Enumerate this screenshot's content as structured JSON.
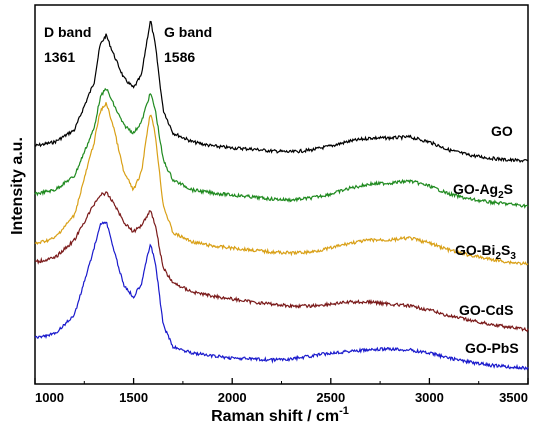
{
  "chart_data": {
    "type": "line",
    "xlabel": "Raman shift / cm",
    "xlabel_sup": "-1",
    "ylabel": "Intensity a.u.",
    "xlim": [
      1000,
      3500
    ],
    "x_ticks": [
      "1000",
      "1500",
      "2000",
      "2500",
      "3000",
      "3500"
    ],
    "annotations": [
      {
        "name": "d-band",
        "title": "D band",
        "value": "1361"
      },
      {
        "name": "g-band",
        "title": "G band",
        "value": "1586"
      }
    ],
    "series": [
      {
        "name": "GO",
        "base": "GO",
        "sub": "",
        "sub2": "",
        "color": "#000000",
        "points": [
          [
            1000,
            146
          ],
          [
            1100,
            142
          ],
          [
            1200,
            130
          ],
          [
            1300,
            82
          ],
          [
            1330,
            45
          ],
          [
            1361,
            35
          ],
          [
            1400,
            55
          ],
          [
            1450,
            78
          ],
          [
            1500,
            88
          ],
          [
            1540,
            75
          ],
          [
            1570,
            38
          ],
          [
            1586,
            20
          ],
          [
            1610,
            45
          ],
          [
            1650,
            110
          ],
          [
            1700,
            133
          ],
          [
            1800,
            142
          ],
          [
            1900,
            146
          ],
          [
            2000,
            148
          ],
          [
            2100,
            149
          ],
          [
            2200,
            151
          ],
          [
            2300,
            152
          ],
          [
            2400,
            150
          ],
          [
            2500,
            146
          ],
          [
            2600,
            141
          ],
          [
            2700,
            138
          ],
          [
            2800,
            138
          ],
          [
            2900,
            137
          ],
          [
            3000,
            142
          ],
          [
            3100,
            150
          ],
          [
            3200,
            155
          ],
          [
            3300,
            158
          ],
          [
            3400,
            160
          ],
          [
            3500,
            161
          ]
        ]
      },
      {
        "name": "GO-Ag2S",
        "base": "GO-Ag",
        "sub": "2",
        "sub2": "S",
        "color": "#1f8a1f",
        "points": [
          [
            1000,
            194
          ],
          [
            1100,
            190
          ],
          [
            1200,
            176
          ],
          [
            1300,
            128
          ],
          [
            1330,
            98
          ],
          [
            1361,
            88
          ],
          [
            1400,
            105
          ],
          [
            1450,
            125
          ],
          [
            1500,
            133
          ],
          [
            1540,
            122
          ],
          [
            1570,
            102
          ],
          [
            1586,
            93
          ],
          [
            1610,
            110
          ],
          [
            1650,
            160
          ],
          [
            1700,
            180
          ],
          [
            1800,
            190
          ],
          [
            1900,
            193
          ],
          [
            2000,
            195
          ],
          [
            2100,
            197
          ],
          [
            2200,
            199
          ],
          [
            2300,
            200
          ],
          [
            2400,
            198
          ],
          [
            2500,
            194
          ],
          [
            2600,
            188
          ],
          [
            2700,
            184
          ],
          [
            2800,
            183
          ],
          [
            2900,
            181
          ],
          [
            3000,
            186
          ],
          [
            3100,
            194
          ],
          [
            3200,
            199
          ],
          [
            3300,
            202
          ],
          [
            3400,
            204
          ],
          [
            3500,
            206
          ]
        ]
      },
      {
        "name": "GO-Bi2S3",
        "base": "GO-Bi",
        "sub": "2",
        "sub2": "S",
        "sub3": "3",
        "color": "#d9a017",
        "points": [
          [
            1000,
            244
          ],
          [
            1100,
            238
          ],
          [
            1200,
            215
          ],
          [
            1300,
            142
          ],
          [
            1330,
            112
          ],
          [
            1361,
            103
          ],
          [
            1400,
            128
          ],
          [
            1450,
            172
          ],
          [
            1500,
            190
          ],
          [
            1540,
            172
          ],
          [
            1570,
            130
          ],
          [
            1586,
            112
          ],
          [
            1610,
            135
          ],
          [
            1650,
            205
          ],
          [
            1700,
            233
          ],
          [
            1800,
            242
          ],
          [
            1900,
            246
          ],
          [
            2000,
            248
          ],
          [
            2100,
            250
          ],
          [
            2200,
            252
          ],
          [
            2300,
            253
          ],
          [
            2400,
            252
          ],
          [
            2500,
            248
          ],
          [
            2600,
            243
          ],
          [
            2700,
            240
          ],
          [
            2800,
            240
          ],
          [
            2900,
            238
          ],
          [
            3000,
            243
          ],
          [
            3100,
            250
          ],
          [
            3200,
            255
          ],
          [
            3300,
            259
          ],
          [
            3400,
            262
          ],
          [
            3500,
            264
          ]
        ]
      },
      {
        "name": "GO-CdS",
        "base": "GO-CdS",
        "sub": "",
        "sub2": "",
        "color": "#7a1a1a",
        "points": [
          [
            1000,
            262
          ],
          [
            1100,
            258
          ],
          [
            1200,
            240
          ],
          [
            1300,
            204
          ],
          [
            1330,
            195
          ],
          [
            1361,
            193
          ],
          [
            1400,
            203
          ],
          [
            1450,
            222
          ],
          [
            1500,
            232
          ],
          [
            1540,
            225
          ],
          [
            1570,
            215
          ],
          [
            1586,
            210
          ],
          [
            1610,
            225
          ],
          [
            1650,
            268
          ],
          [
            1700,
            283
          ],
          [
            1800,
            292
          ],
          [
            1900,
            296
          ],
          [
            2000,
            299
          ],
          [
            2100,
            302
          ],
          [
            2200,
            304
          ],
          [
            2300,
            306
          ],
          [
            2400,
            306
          ],
          [
            2500,
            304
          ],
          [
            2600,
            302
          ],
          [
            2700,
            302
          ],
          [
            2800,
            304
          ],
          [
            2900,
            306
          ],
          [
            3000,
            310
          ],
          [
            3100,
            316
          ],
          [
            3200,
            320
          ],
          [
            3300,
            324
          ],
          [
            3400,
            327
          ],
          [
            3500,
            330
          ]
        ]
      },
      {
        "name": "GO-PbS",
        "base": "GO-PbS",
        "sub": "",
        "sub2": "",
        "color": "#1a1acc",
        "points": [
          [
            1000,
            338
          ],
          [
            1100,
            334
          ],
          [
            1200,
            315
          ],
          [
            1300,
            248
          ],
          [
            1330,
            225
          ],
          [
            1361,
            221
          ],
          [
            1400,
            250
          ],
          [
            1450,
            285
          ],
          [
            1500,
            297
          ],
          [
            1540,
            283
          ],
          [
            1570,
            255
          ],
          [
            1586,
            245
          ],
          [
            1610,
            262
          ],
          [
            1650,
            325
          ],
          [
            1700,
            347
          ],
          [
            1800,
            353
          ],
          [
            1900,
            356
          ],
          [
            2000,
            358
          ],
          [
            2100,
            359
          ],
          [
            2200,
            360
          ],
          [
            2300,
            359
          ],
          [
            2400,
            356
          ],
          [
            2500,
            353
          ],
          [
            2600,
            351
          ],
          [
            2700,
            350
          ],
          [
            2800,
            349
          ],
          [
            2900,
            350
          ],
          [
            3000,
            353
          ],
          [
            3100,
            358
          ],
          [
            3200,
            362
          ],
          [
            3300,
            365
          ],
          [
            3400,
            367
          ],
          [
            3500,
            368
          ]
        ]
      }
    ]
  }
}
